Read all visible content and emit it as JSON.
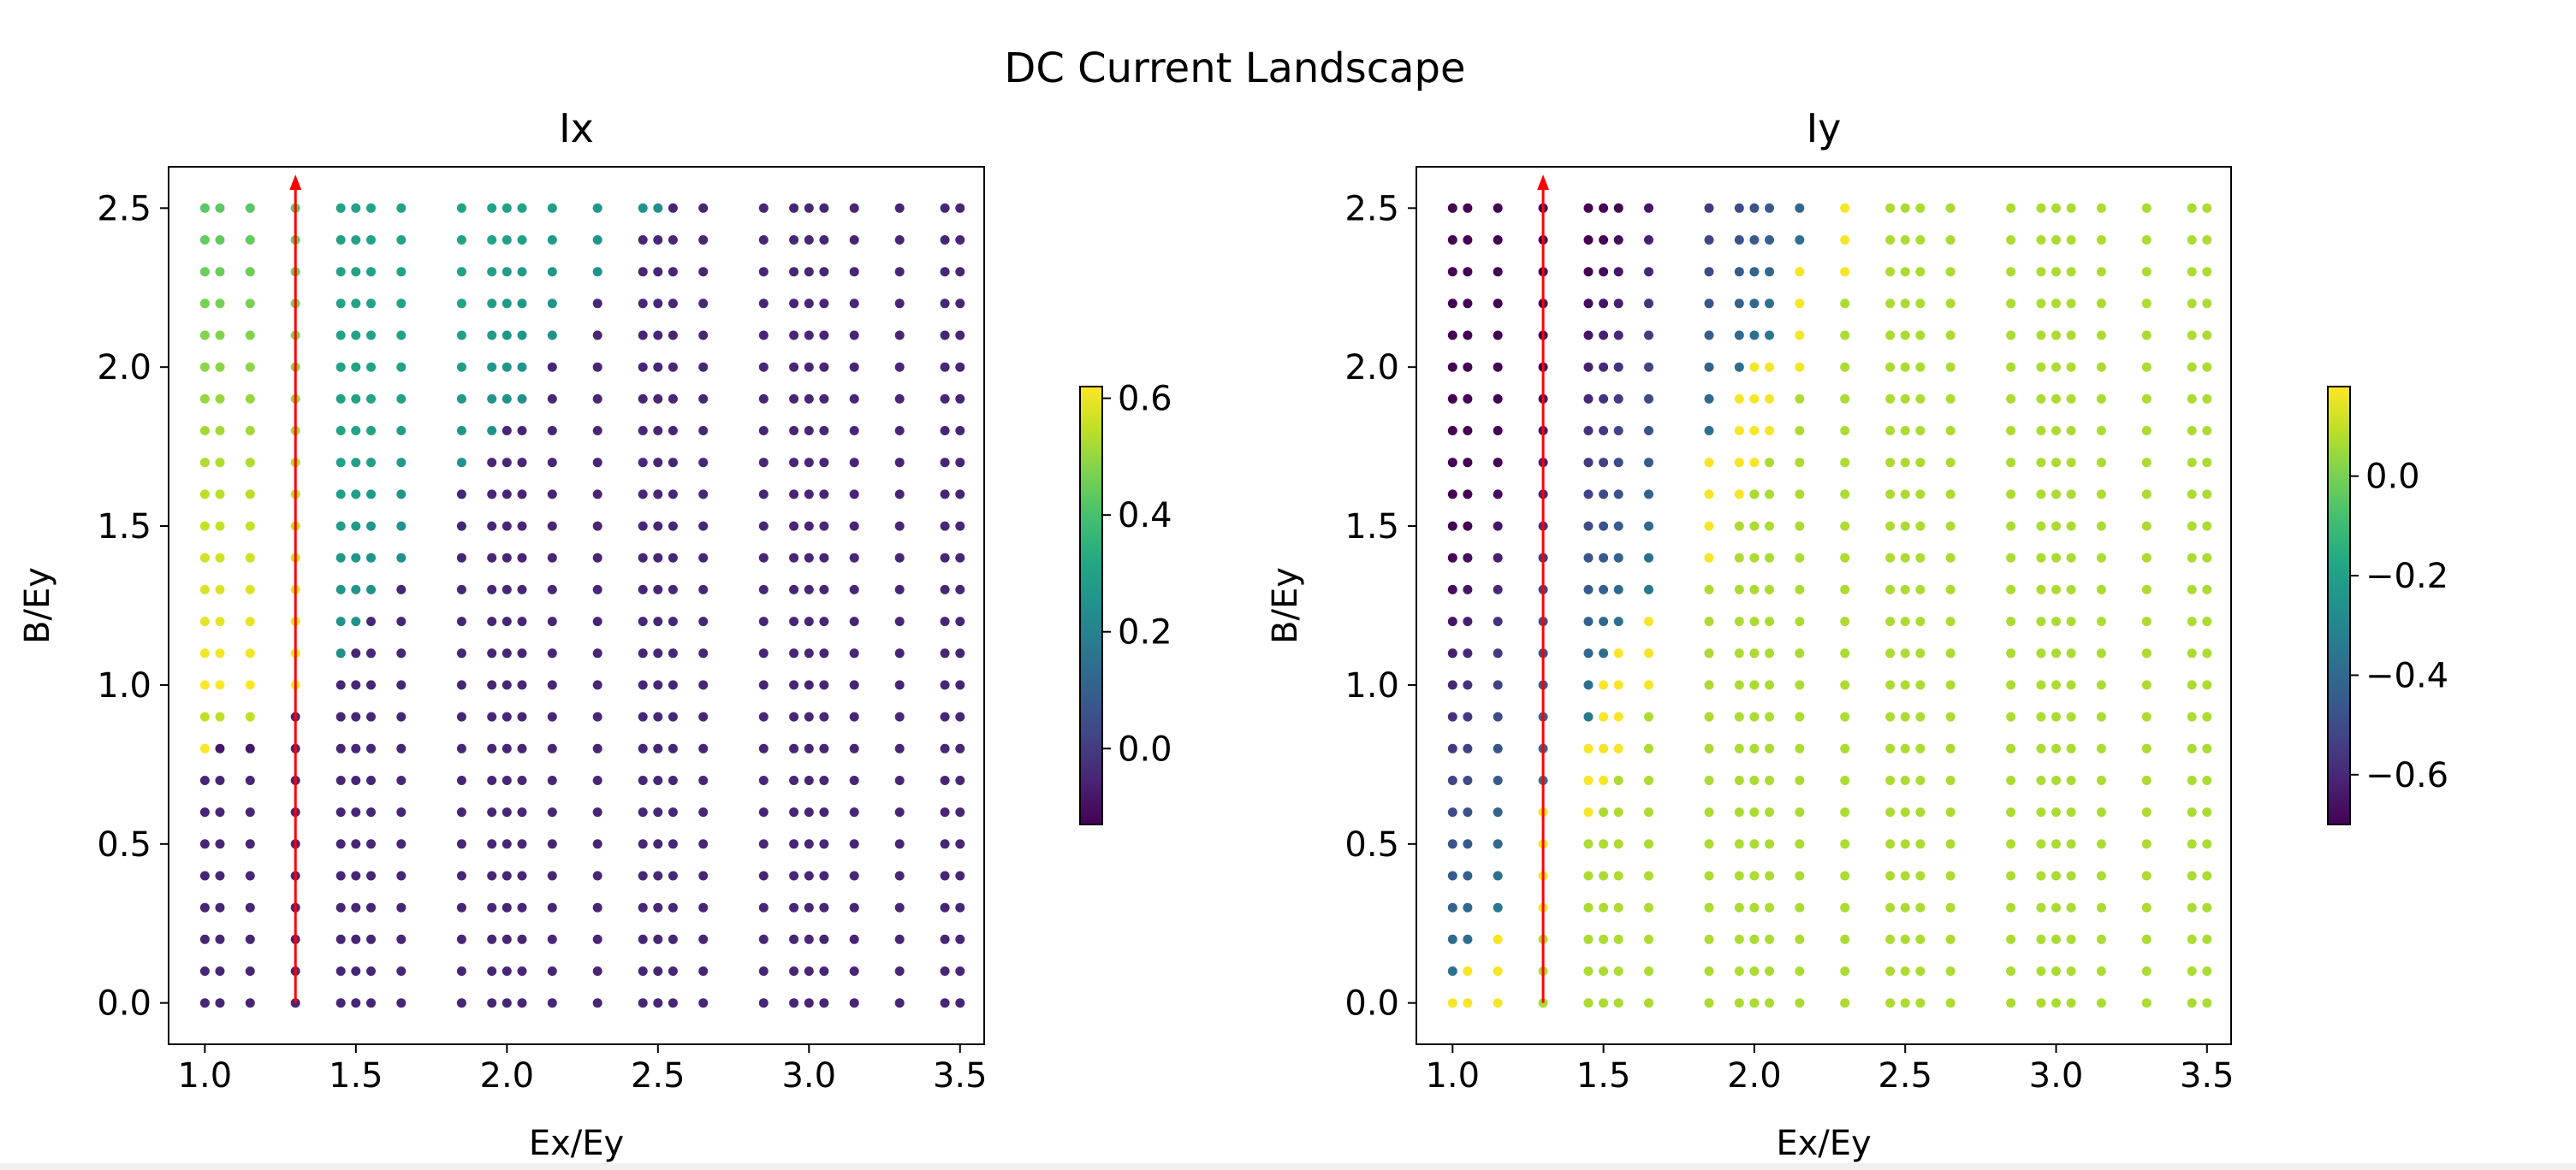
{
  "figure": {
    "suptitle": "DC Current Landscape"
  },
  "chart_data": [
    {
      "type": "scatter",
      "title": "Ix",
      "xlabel": "Ex/Ey",
      "ylabel": "B/Ey",
      "xlim": [
        0.88,
        3.58
      ],
      "ylim": [
        -0.13,
        2.63
      ],
      "xticks": [
        "1.0",
        "1.5",
        "2.0",
        "2.5",
        "3.0",
        "3.5"
      ],
      "yticks": [
        "0.0",
        "0.5",
        "1.0",
        "1.5",
        "2.0",
        "2.5"
      ],
      "x_values": [
        1.0,
        1.05,
        1.15,
        1.3,
        1.45,
        1.5,
        1.55,
        1.65,
        1.85,
        1.95,
        2.0,
        2.05,
        2.15,
        2.3,
        2.45,
        2.5,
        2.55,
        2.65,
        2.85,
        2.95,
        3.0,
        3.05,
        3.15,
        3.3,
        3.45,
        3.5
      ],
      "y_values": [
        0.0,
        0.1,
        0.2,
        0.3,
        0.4,
        0.5,
        0.6,
        0.7,
        0.8,
        0.9,
        1.0,
        1.1,
        1.2,
        1.3,
        1.4,
        1.5,
        1.6,
        1.7,
        1.8,
        1.9,
        2.0,
        2.1,
        2.2,
        2.3,
        2.4,
        2.5
      ],
      "value_rule": "current at each grid point; high (0.25–0.6) at low Ex/Ey and high B/Ey, about -0.05 elsewhere",
      "colorbar": {
        "cmap": "viridis",
        "range": [
          -0.13,
          0.62
        ],
        "ticks": [
          "0.0",
          "0.2",
          "0.4",
          "0.6"
        ]
      },
      "arrow": {
        "x": 1.3,
        "y_start": 0.0,
        "y_end": 2.6,
        "color": "#ff0000"
      }
    },
    {
      "type": "scatter",
      "title": "Iy",
      "xlabel": "Ex/Ey",
      "ylabel": "B/Ey",
      "xlim": [
        0.88,
        3.58
      ],
      "ylim": [
        -0.13,
        2.63
      ],
      "xticks": [
        "1.0",
        "1.5",
        "2.0",
        "2.5",
        "3.0",
        "3.5"
      ],
      "yticks": [
        "0.0",
        "0.5",
        "1.0",
        "1.5",
        "2.0",
        "2.5"
      ],
      "x_values": [
        1.0,
        1.05,
        1.15,
        1.3,
        1.45,
        1.5,
        1.55,
        1.65,
        1.85,
        1.95,
        2.0,
        2.05,
        2.15,
        2.3,
        2.45,
        2.5,
        2.55,
        2.65,
        2.85,
        2.95,
        3.0,
        3.05,
        3.15,
        3.3,
        3.45,
        3.5
      ],
      "y_values": [
        0.0,
        0.1,
        0.2,
        0.3,
        0.4,
        0.5,
        0.6,
        0.7,
        0.8,
        0.9,
        1.0,
        1.1,
        1.2,
        1.3,
        1.4,
        1.5,
        1.6,
        1.7,
        1.8,
        1.9,
        2.0,
        2.1,
        2.2,
        2.3,
        2.4,
        2.5
      ],
      "value_rule": "about 0.0 to 0.15 below a diagonal boundary B/Ey ≈ 2·(Ex/Ey) − 2, about -0.35 to -0.7 above it",
      "colorbar": {
        "cmap": "viridis",
        "range": [
          -0.7,
          0.18
        ],
        "ticks": [
          "0.0",
          "−0.2",
          "−0.4",
          "−0.6"
        ]
      },
      "arrow": {
        "x": 1.3,
        "y_start": 0.0,
        "y_end": 2.6,
        "color": "#ff0000"
      }
    }
  ]
}
